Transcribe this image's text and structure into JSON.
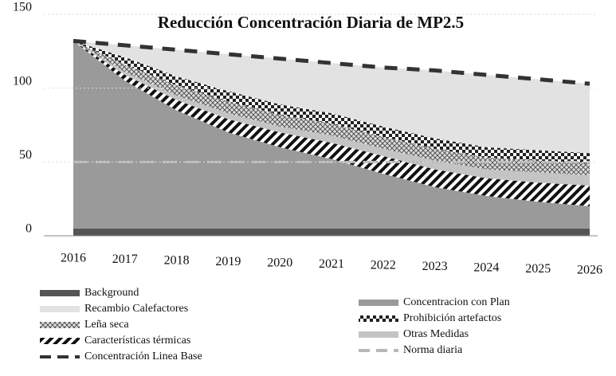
{
  "chart_data": {
    "type": "stacked_area",
    "title": "Reducción Concentración Diaria de MP2.5",
    "categories": [
      "2016",
      "2017",
      "2018",
      "2019",
      "2020",
      "2021",
      "2022",
      "2023",
      "2024",
      "2025",
      "2026"
    ],
    "ylim": [
      0,
      150
    ],
    "yticks": [
      0,
      50,
      100,
      150
    ],
    "grid": true,
    "series": [
      {
        "name": "Background",
        "color": "#555555",
        "pattern": "solid",
        "values": [
          5,
          5,
          5,
          5,
          5,
          5,
          5,
          5,
          5,
          5,
          5
        ]
      },
      {
        "name": "Concentracion con Plan",
        "color": "#9a9a9a",
        "pattern": "solid",
        "values": [
          127,
          100,
          80,
          65,
          55,
          47,
          37,
          28,
          22,
          18,
          15
        ]
      },
      {
        "name": "Características térmicas",
        "color": "#111111",
        "pattern": "stripes",
        "values": [
          0,
          4,
          7,
          9,
          10,
          11,
          12,
          12,
          12,
          13,
          14
        ]
      },
      {
        "name": "Otras Medidas",
        "color": "#c4c4c4",
        "pattern": "solid",
        "values": [
          0,
          2,
          3,
          4,
          4,
          5,
          5,
          6,
          6,
          7,
          7
        ]
      },
      {
        "name": "Leña seca",
        "color": "#555555",
        "pattern": "cross",
        "values": [
          0,
          5,
          7,
          8,
          8,
          8,
          8,
          8,
          8,
          8,
          8
        ]
      },
      {
        "name": "Prohibición artefactos",
        "color": "#222222",
        "pattern": "checker",
        "values": [
          0,
          5,
          6,
          7,
          7,
          7,
          7,
          7,
          7,
          7,
          7
        ]
      },
      {
        "name": "Recambio Calefactores",
        "color": "#e2e2e2",
        "pattern": "solid",
        "values": [
          0,
          8,
          18,
          25,
          31,
          34,
          40,
          46,
          49,
          48,
          47
        ]
      }
    ],
    "lines": [
      {
        "name": "Concentración Linea Base",
        "color": "#333333",
        "values": [
          132,
          129,
          126,
          123,
          120,
          117,
          114,
          112,
          109,
          106,
          103
        ]
      },
      {
        "name": "Norma diaria",
        "color": "#b8b8b8",
        "values": [
          50,
          50,
          50,
          50,
          50,
          50,
          50,
          50,
          50,
          50,
          50
        ]
      }
    ]
  }
}
